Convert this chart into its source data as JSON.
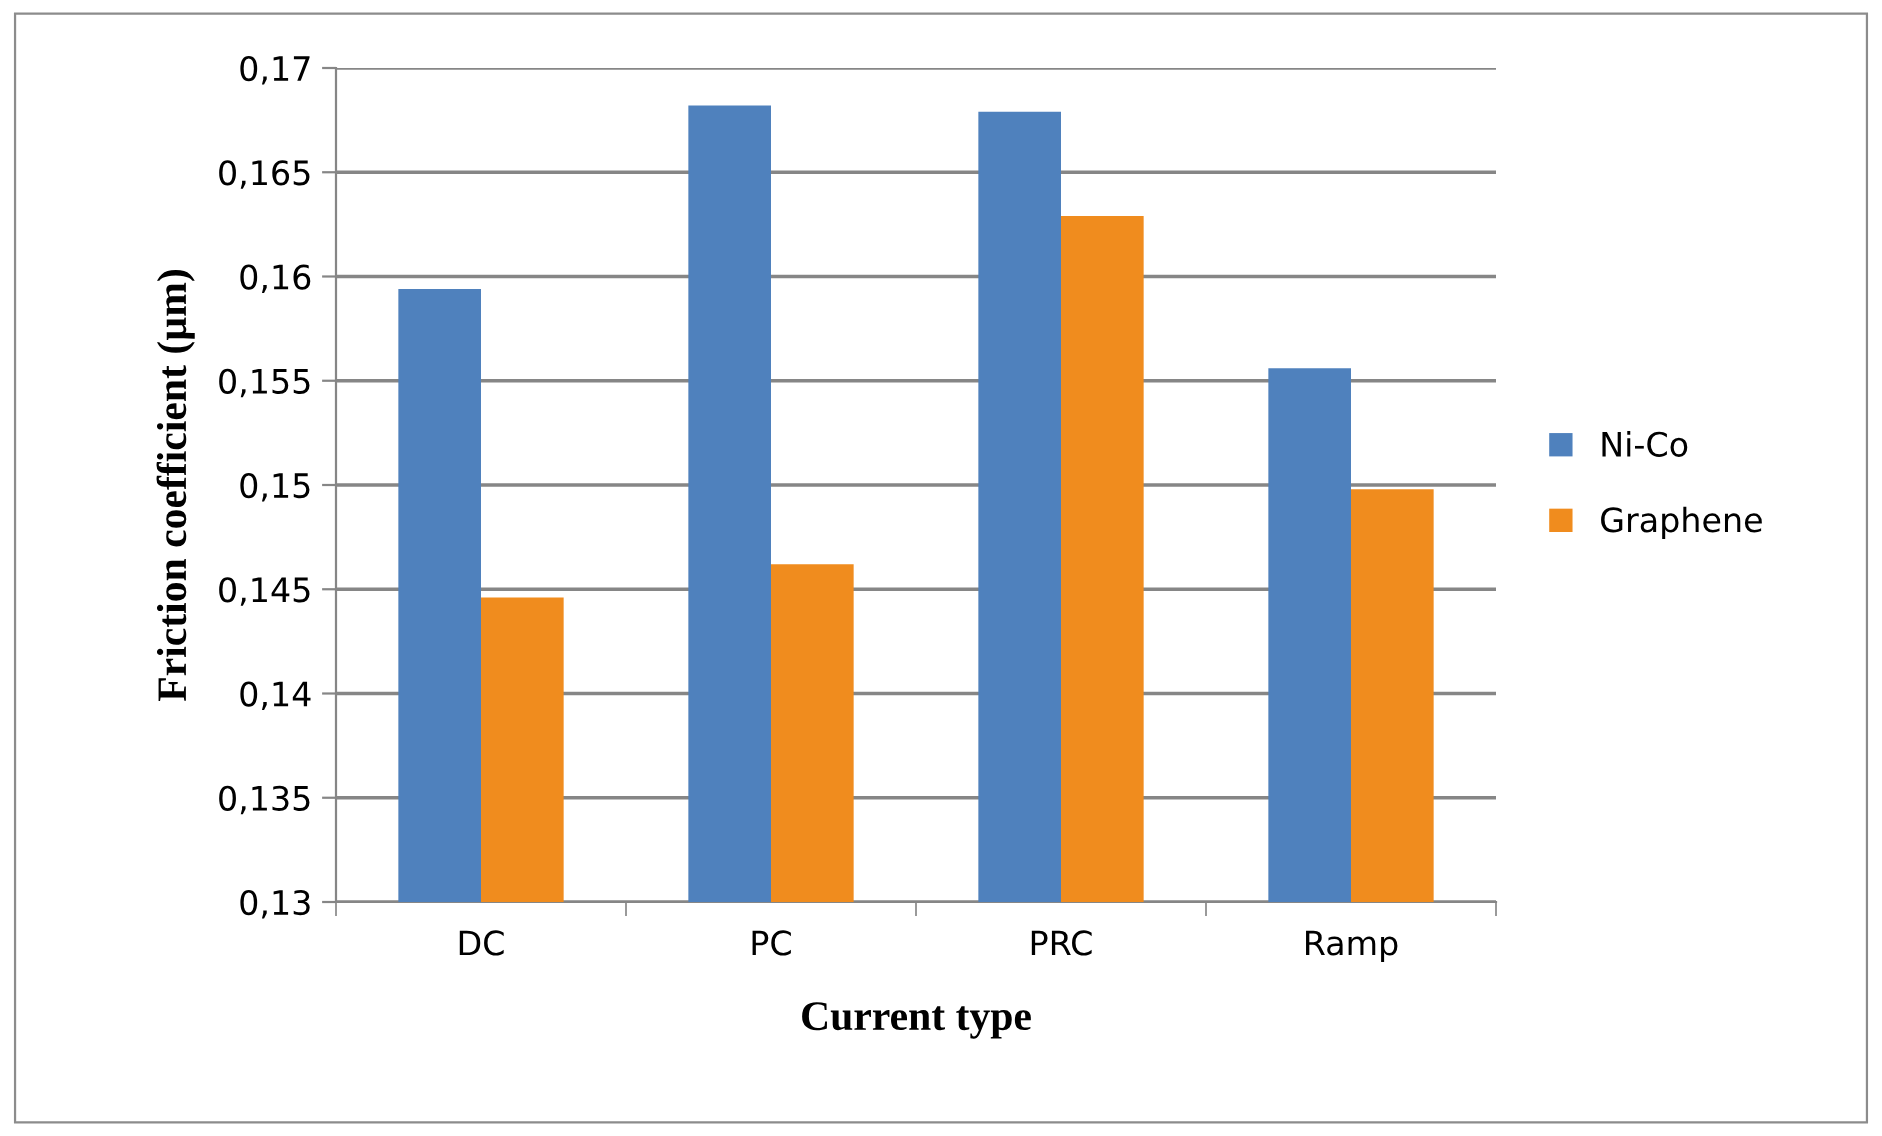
{
  "chart_data": {
    "type": "bar",
    "xlabel": "Current type",
    "ylabel": "Friction coefficient (µm)",
    "categories": [
      "DC",
      "PC",
      "PRC",
      "Ramp"
    ],
    "series": [
      {
        "name": "Ni-Co",
        "color": "#4f81bd",
        "values": [
          0.1594,
          0.1682,
          0.1679,
          0.1556
        ]
      },
      {
        "name": "Graphene",
        "color": "#f08c1e",
        "values": [
          0.1446,
          0.1462,
          0.1629,
          0.1498
        ]
      }
    ],
    "ylim": [
      0.13,
      0.17
    ],
    "yticks": [
      {
        "value": 0.13,
        "label": "0,13"
      },
      {
        "value": 0.135,
        "label": "0,135"
      },
      {
        "value": 0.14,
        "label": "0,14"
      },
      {
        "value": 0.145,
        "label": "0,145"
      },
      {
        "value": 0.15,
        "label": "0,15"
      },
      {
        "value": 0.155,
        "label": "0,155"
      },
      {
        "value": 0.16,
        "label": "0,16"
      },
      {
        "value": 0.165,
        "label": "0,165"
      },
      {
        "value": 0.17,
        "label": "0,17"
      }
    ],
    "grid": "y",
    "legend": "right"
  }
}
